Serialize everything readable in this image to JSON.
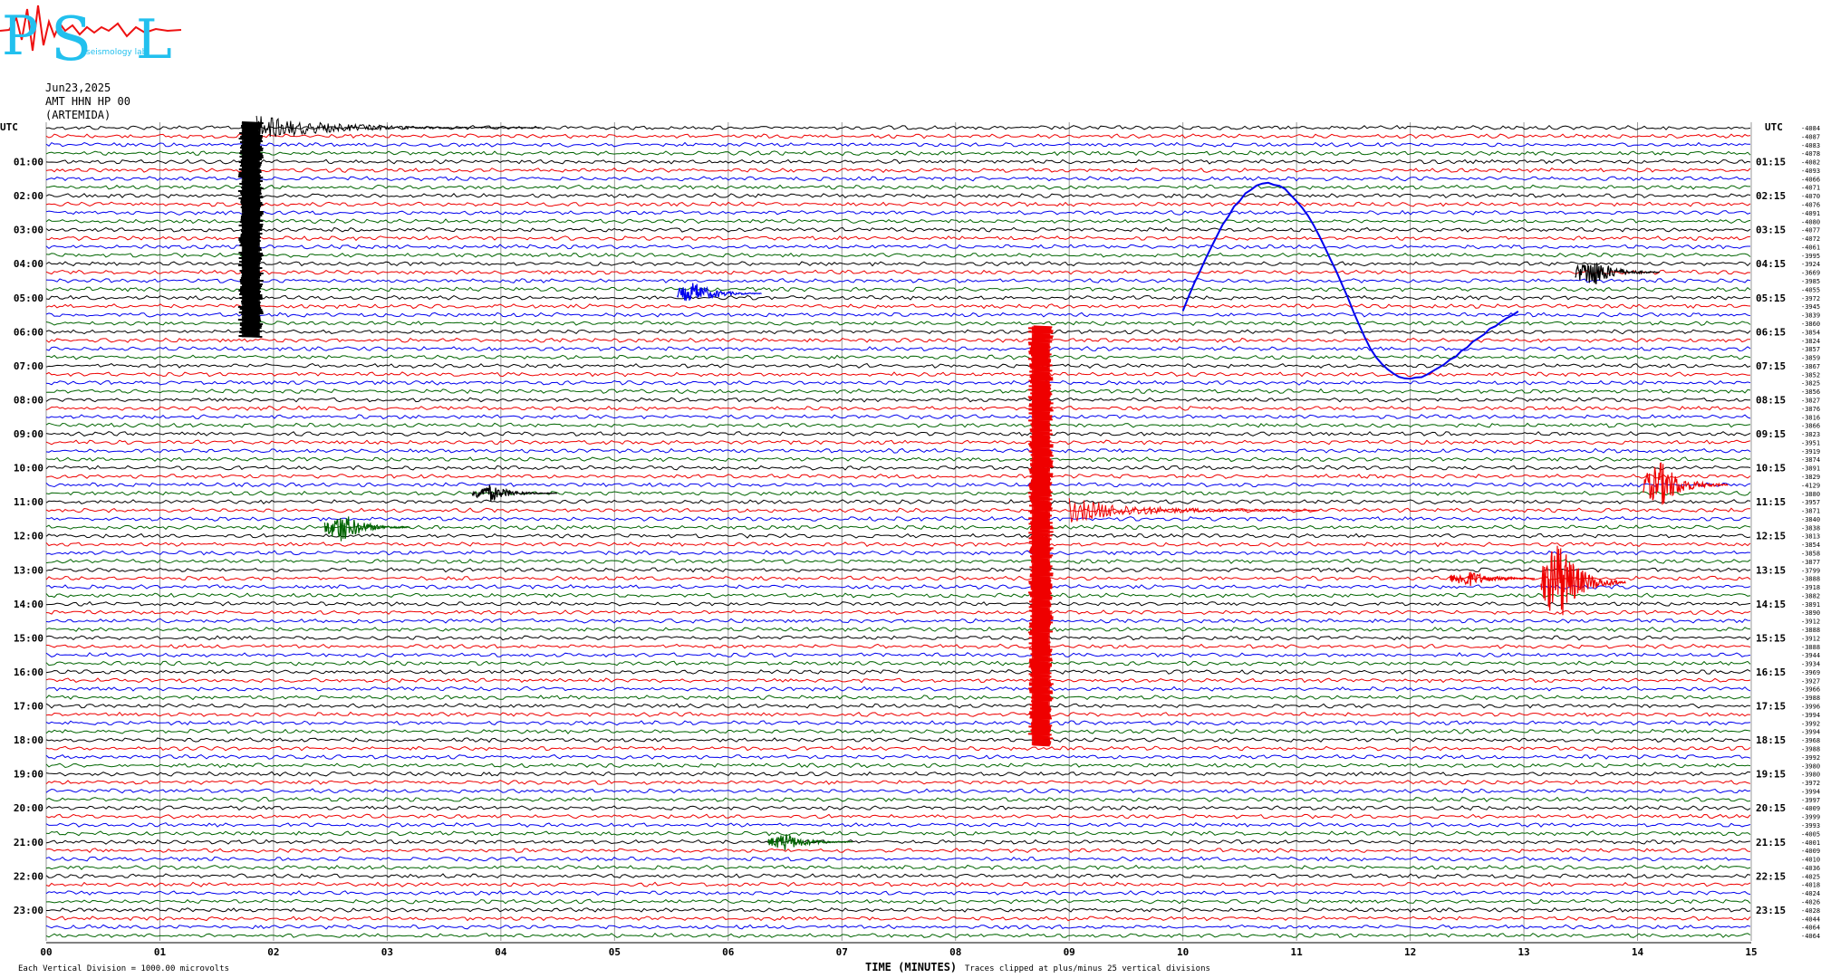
{
  "header": {
    "date": "Jun23,2025",
    "station": "AMT HHN HP 00",
    "site": "(ARTEMIDA)"
  },
  "logo": {
    "letters": [
      "P",
      "S",
      "L"
    ],
    "caption": "seismology lab"
  },
  "colors": {
    "black": "#000000",
    "red": "#ee0000",
    "blue": "#0000ee",
    "green": "#006400",
    "grid": "#999999",
    "logo_cyan": "#22c0ee",
    "logo_red": "#ee1111"
  },
  "chart_data": {
    "type": "line",
    "description_units": "helicorder: x = minutes after row start, rows = 15-minute traces",
    "xlabel": "TIME (MINUTES)",
    "x_ticks": [
      "00",
      "01",
      "02",
      "03",
      "04",
      "05",
      "06",
      "07",
      "08",
      "09",
      "10",
      "11",
      "12",
      "13",
      "14",
      "15"
    ],
    "xlim": [
      0,
      15
    ],
    "left_axis_title": "UTC",
    "right_axis_title": "UTC",
    "left_hour_labels": [
      "01:00",
      "02:00",
      "03:00",
      "04:00",
      "05:00",
      "06:00",
      "07:00",
      "08:00",
      "09:00",
      "10:00",
      "11:00",
      "12:00",
      "13:00",
      "14:00",
      "15:00",
      "16:00",
      "17:00",
      "18:00",
      "19:00",
      "20:00",
      "21:00",
      "22:00",
      "23:00"
    ],
    "right_hour_labels": [
      "01:15",
      "02:15",
      "03:15",
      "04:15",
      "05:15",
      "06:15",
      "07:15",
      "08:15",
      "09:15",
      "10:15",
      "11:15",
      "12:15",
      "13:15",
      "14:15",
      "15:15",
      "16:15",
      "17:15",
      "18:15",
      "19:15",
      "20:15",
      "21:15",
      "22:15",
      "23:15"
    ],
    "row_count": 96,
    "row_color_cycle": [
      "black",
      "red",
      "blue",
      "green"
    ],
    "right_offsets": [
      "-4084",
      "-4087",
      "-4083",
      "-4078",
      "-4082",
      "-4093",
      "-4066",
      "-4071",
      "-4070",
      "-4076",
      "-4091",
      "-4080",
      "-4077",
      "-4072",
      "-4061",
      "-3995",
      "-3924",
      "-3669",
      "-3985",
      "-4055",
      "-3972",
      "-3945",
      "-3839",
      "-3860",
      "-3854",
      "-3824",
      "-3857",
      "-3859",
      "-3867",
      "-3852",
      "-3825",
      "-3856",
      "-3827",
      "-3876",
      "-3816",
      "-3866",
      "-3823",
      "-3951",
      "-3919",
      "-3874",
      "-3891",
      "-3829",
      "-4129",
      "-3880",
      "-3957",
      "-3871",
      "-3840",
      "-3838",
      "-3813",
      "-3854",
      "-3858",
      "-3877",
      "-3799",
      "-3888",
      "-3918",
      "-3882",
      "-3891",
      "-3890",
      "-3912",
      "-3888",
      "-3912",
      "-3888",
      "-3944",
      "-3934",
      "-3969",
      "-3927",
      "-3966",
      "-3988",
      "-3996",
      "-3994",
      "-3992",
      "-3994",
      "-3968",
      "-3988",
      "-3992",
      "-3980",
      "-3980",
      "-3972",
      "-3994",
      "-3997",
      "-4009",
      "-3999",
      "-3993",
      "-4005",
      "-4001",
      "-4009",
      "-4010",
      "-4036",
      "-4025",
      "-4018",
      "-4024",
      "-4026",
      "-4028",
      "-4044",
      "-4064",
      "-4064"
    ],
    "events": [
      {
        "name": "large quake 00:00 row",
        "row_start": 0,
        "row_end": 24,
        "minute": 1.8,
        "color": "black",
        "amplitude": "clipped"
      },
      {
        "name": "coda 00:00 row",
        "row_start": 0,
        "row_end": 0,
        "minute": 1.85,
        "color": "black",
        "duration_min": 2.5
      },
      {
        "name": "slow drift 03:00-07:00",
        "row_start": 14,
        "row_end": 26,
        "minute": 11.1,
        "color": "blue",
        "amplitude": "long period"
      },
      {
        "name": "hump 05:00 row",
        "row_start": 19,
        "row_end": 20,
        "minute": 5.7,
        "color": "blue"
      },
      {
        "name": "burst 05:00 row",
        "row_start": 16,
        "row_end": 18,
        "minute": 13.6,
        "color": "black"
      },
      {
        "name": "clipped quake 06:00-18:00",
        "row_start": 24,
        "row_end": 72,
        "minute": 8.75,
        "color": "red",
        "amplitude": "clipped"
      },
      {
        "name": "coda 12:00 row",
        "row_start": 45,
        "row_end": 45,
        "minute": 9.0,
        "color": "red",
        "duration_min": 2.2
      },
      {
        "name": "event 11:15",
        "row_start": 40,
        "row_end": 44,
        "minute": 14.2,
        "color": "red"
      },
      {
        "name": "event 14:00",
        "row_start": 49,
        "row_end": 58,
        "minute": 13.3,
        "color": "red"
      },
      {
        "name": "event 14:00 early",
        "row_start": 53,
        "row_end": 53,
        "minute": 12.5,
        "color": "red"
      },
      {
        "name": "event 12:45",
        "row_start": 46,
        "row_end": 48,
        "minute": 2.6,
        "color": "green"
      },
      {
        "name": "event 11:00 black",
        "row_start": 43,
        "row_end": 43,
        "minute": 3.9,
        "color": "black"
      },
      {
        "name": "event 21:00 green",
        "row_start": 84,
        "row_end": 84,
        "minute": 6.5,
        "color": "green"
      }
    ],
    "footer_left": "Each Vertical Division = 1000.00 microvolts",
    "footer_right": "Traces clipped at plus/minus 25 vertical divisions"
  }
}
